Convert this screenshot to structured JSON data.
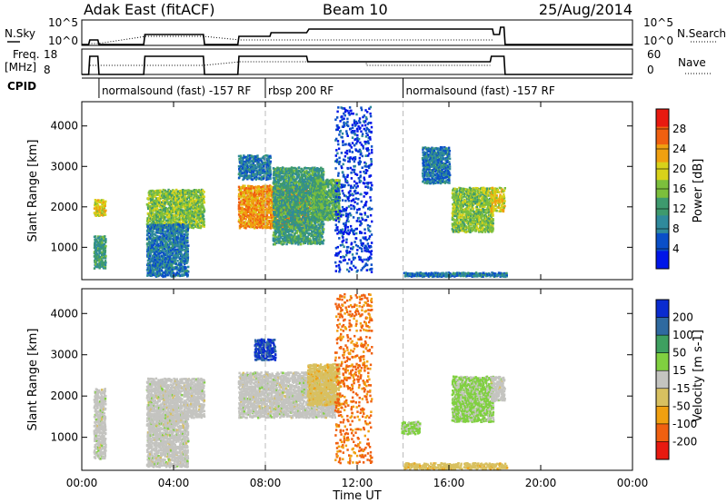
{
  "header": {
    "radar": "Adak East (fitACF)",
    "beam": "Beam 10",
    "date": "25/Aug/2014"
  },
  "strips": {
    "nsky_label": "N.Sky",
    "nsky_ticks": [
      "10^5",
      "10^0"
    ],
    "nsearch_label": "N.Search",
    "nsearch_ticks": [
      "10^5",
      "10^0"
    ],
    "freq_label_line1": "Freq.",
    "freq_label_line2": "[MHz]",
    "freq_ticks": [
      "18",
      "8"
    ],
    "nave_label": "Nave",
    "nave_ticks": [
      "60",
      "0"
    ],
    "cpid_label": "CPID"
  },
  "cpid_segments": [
    {
      "start_h": 0.75,
      "label": "normalsound (fast) -157 RF"
    },
    {
      "start_h": 8.0,
      "label": "rbsp 200 RF"
    },
    {
      "start_h": 14.0,
      "label": "normalsound (fast) -157 RF"
    }
  ],
  "x_axis": {
    "label": "Time UT",
    "range_h": [
      0,
      24
    ],
    "ticks": [
      {
        "h": 0,
        "label": "00:00"
      },
      {
        "h": 4,
        "label": "04:00"
      },
      {
        "h": 8,
        "label": "08:00"
      },
      {
        "h": 12,
        "label": "12:00"
      },
      {
        "h": 16,
        "label": "16:00"
      },
      {
        "h": 20,
        "label": "20:00"
      },
      {
        "h": 24,
        "label": "00:00"
      }
    ]
  },
  "colors": {
    "power_scale": [
      "#0016e8",
      "#0a4fc8",
      "#2f8a9c",
      "#3e9a6e",
      "#7cbf3c",
      "#d8d21a",
      "#f0a010",
      "#f06010",
      "#e81a10"
    ],
    "velocity_scale": [
      "#e81a10",
      "#f06010",
      "#f0a010",
      "#d8c060",
      "#c4c4c0",
      "#80d040",
      "#3ea060",
      "#2f6aa0",
      "#0a2cd0"
    ]
  },
  "chart_data": [
    {
      "type": "heatmap",
      "title": "Power",
      "ylabel": "Slant Range [km]",
      "ylim": [
        200,
        4600
      ],
      "y_ticks": [
        1000,
        2000,
        3000,
        4000
      ],
      "colorbar": {
        "label": "Power [dB]",
        "range": [
          0,
          32
        ],
        "ticks": [
          "4",
          "8",
          "12",
          "16",
          "20",
          "24",
          "28"
        ]
      },
      "regions": [
        {
          "t": [
            0.5,
            1.0
          ],
          "r": [
            1800,
            2200
          ],
          "v": 20
        },
        {
          "t": [
            0.5,
            1.0
          ],
          "r": [
            500,
            1300
          ],
          "v": 12
        },
        {
          "t": [
            2.8,
            5.3
          ],
          "r": [
            1500,
            2450
          ],
          "v": 16
        },
        {
          "t": [
            2.8,
            4.6
          ],
          "r": [
            300,
            1600
          ],
          "v": 8
        },
        {
          "t": [
            6.8,
            9.9
          ],
          "r": [
            1500,
            2550
          ],
          "v": 24
        },
        {
          "t": [
            6.8,
            8.2
          ],
          "r": [
            2700,
            3300
          ],
          "v": 8
        },
        {
          "t": [
            8.3,
            10.5
          ],
          "r": [
            1100,
            3000
          ],
          "v": 12
        },
        {
          "t": [
            10.0,
            11.2
          ],
          "r": [
            1700,
            2700
          ],
          "v": 14
        },
        {
          "t": [
            11.0,
            12.6
          ],
          "r": [
            400,
            4500
          ],
          "v": 4
        },
        {
          "t": [
            14.0,
            18.5
          ],
          "r": [
            300,
            400
          ],
          "v": 8
        },
        {
          "t": [
            16.1,
            17.9
          ],
          "r": [
            1400,
            2500
          ],
          "v": 16
        },
        {
          "t": [
            17.8,
            18.4
          ],
          "r": [
            1900,
            2500
          ],
          "v": 20
        },
        {
          "t": [
            14.8,
            16.0
          ],
          "r": [
            2600,
            3500
          ],
          "v": 8
        }
      ]
    },
    {
      "type": "heatmap",
      "title": "Velocity",
      "ylabel": "Slant Range [km]",
      "ylim": [
        200,
        4600
      ],
      "y_ticks": [
        1000,
        2000,
        3000,
        4000
      ],
      "colorbar": {
        "label": "Velocity [m s-1]",
        "range": [
          -250,
          250
        ],
        "ticks": [
          "200",
          "100",
          "50",
          "15",
          "-15",
          "-50",
          "-100",
          "-200"
        ]
      },
      "regions": [
        {
          "t": [
            0.5,
            1.0
          ],
          "r": [
            500,
            2200
          ],
          "v": 0
        },
        {
          "t": [
            2.8,
            5.3
          ],
          "r": [
            1500,
            2450
          ],
          "v": 0
        },
        {
          "t": [
            2.8,
            4.6
          ],
          "r": [
            300,
            1600
          ],
          "v": 0
        },
        {
          "t": [
            6.8,
            11.0
          ],
          "r": [
            1500,
            2600
          ],
          "v": 0
        },
        {
          "t": [
            7.5,
            8.4
          ],
          "r": [
            2900,
            3400
          ],
          "v": 200
        },
        {
          "t": [
            9.8,
            11.2
          ],
          "r": [
            1800,
            2800
          ],
          "v": -60
        },
        {
          "t": [
            11.0,
            12.6
          ],
          "r": [
            400,
            4500
          ],
          "v": -150
        },
        {
          "t": [
            13.9,
            14.7
          ],
          "r": [
            1100,
            1400
          ],
          "v": 40
        },
        {
          "t": [
            14.0,
            18.5
          ],
          "r": [
            250,
            400
          ],
          "v": -60
        },
        {
          "t": [
            16.1,
            17.9
          ],
          "r": [
            1400,
            2500
          ],
          "v": 40
        },
        {
          "t": [
            17.8,
            18.4
          ],
          "r": [
            1900,
            2500
          ],
          "v": 0
        }
      ]
    }
  ]
}
